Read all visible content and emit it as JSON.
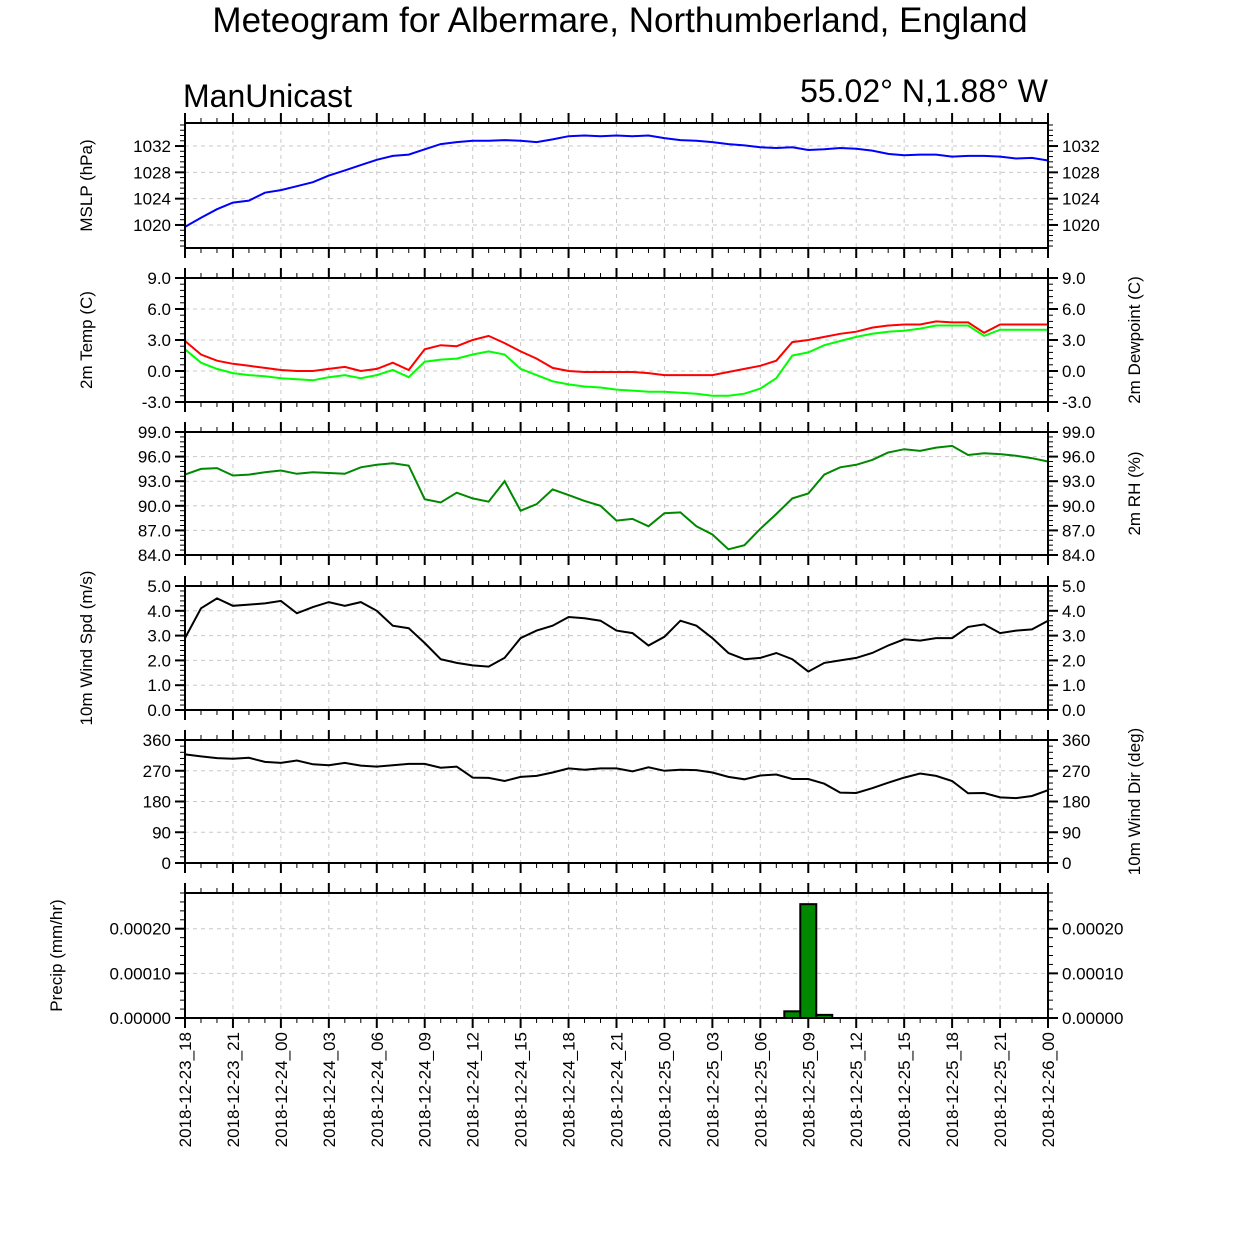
{
  "title": "Meteogram for Albermare, Northumberland, England",
  "source_label": "ManUnicast",
  "location_label": "55.02° N,1.88° W",
  "x_tick_labels": [
    "2018-12-23_18",
    "2018-12-23_21",
    "2018-12-24_00",
    "2018-12-24_03",
    "2018-12-24_06",
    "2018-12-24_09",
    "2018-12-24_12",
    "2018-12-24_15",
    "2018-12-24_18",
    "2018-12-24_21",
    "2018-12-25_00",
    "2018-12-25_03",
    "2018-12-25_06",
    "2018-12-25_09",
    "2018-12-25_12",
    "2018-12-25_15",
    "2018-12-25_18",
    "2018-12-25_21",
    "2018-12-26_00"
  ],
  "chart_data": [
    {
      "type": "line",
      "id": "mslp",
      "ylabel": "MSLP (hPa)",
      "ylabel_right": "",
      "x_range_hours": [
        0,
        54
      ],
      "ylim": [
        1016.5,
        1035.5
      ],
      "yticks": [
        1020,
        1024,
        1028,
        1032
      ],
      "ytick_labels": [
        "1020",
        "1024",
        "1028",
        "1032"
      ],
      "grid": true,
      "series": [
        {
          "color": "#0000ff",
          "x": [
            0,
            1,
            2,
            3,
            4,
            5,
            6,
            7,
            8,
            9,
            10,
            11,
            12,
            13,
            14,
            15,
            16,
            17,
            18,
            19,
            20,
            21,
            22,
            23,
            24,
            25,
            26,
            27,
            28,
            29,
            30,
            31,
            32,
            33,
            34,
            35,
            36,
            37,
            38,
            39,
            40,
            41,
            42,
            43,
            44,
            45,
            46,
            47,
            48,
            49,
            50,
            51,
            52,
            53,
            54
          ],
          "values": [
            1019.7,
            1021.1,
            1022.4,
            1023.4,
            1023.7,
            1024.9,
            1025.3,
            1025.9,
            1026.5,
            1027.5,
            1028.3,
            1029.1,
            1029.9,
            1030.5,
            1030.7,
            1031.5,
            1032.3,
            1032.6,
            1032.8,
            1032.8,
            1032.9,
            1032.8,
            1032.6,
            1033.0,
            1033.5,
            1033.6,
            1033.5,
            1033.6,
            1033.5,
            1033.6,
            1033.2,
            1032.9,
            1032.8,
            1032.6,
            1032.3,
            1032.1,
            1031.8,
            1031.7,
            1031.8,
            1031.4,
            1031.5,
            1031.7,
            1031.6,
            1031.3,
            1030.8,
            1030.6,
            1030.7,
            1030.7,
            1030.4,
            1030.5,
            1030.5,
            1030.4,
            1030.1,
            1030.2,
            1029.8
          ]
        }
      ]
    },
    {
      "type": "line",
      "id": "temp",
      "ylabel": "2m Temp (C)",
      "ylabel_right": "2m Dewpoint (C)",
      "x_range_hours": [
        0,
        54
      ],
      "ylim": [
        -3,
        9
      ],
      "yticks": [
        -3,
        0,
        3,
        6,
        9
      ],
      "ytick_labels": [
        "-3.0",
        "0.0",
        "3.0",
        "6.0",
        "9.0"
      ],
      "grid": true,
      "series": [
        {
          "color": "#ff0000",
          "x": [
            0,
            1,
            2,
            3,
            4,
            5,
            6,
            7,
            8,
            9,
            10,
            11,
            12,
            13,
            14,
            15,
            16,
            17,
            18,
            19,
            20,
            21,
            22,
            23,
            24,
            25,
            26,
            27,
            28,
            29,
            30,
            31,
            32,
            33,
            34,
            35,
            36,
            37,
            38,
            39,
            40,
            41,
            42,
            43,
            44,
            45,
            46,
            47,
            48,
            49,
            50,
            51,
            52,
            53,
            54
          ],
          "values": [
            2.9,
            1.6,
            1.0,
            0.7,
            0.5,
            0.3,
            0.1,
            0.0,
            0.0,
            0.2,
            0.4,
            0.0,
            0.2,
            0.8,
            0.1,
            2.1,
            2.5,
            2.4,
            3.0,
            3.4,
            2.7,
            1.9,
            1.2,
            0.3,
            0.0,
            -0.1,
            -0.1,
            -0.1,
            -0.1,
            -0.2,
            -0.4,
            -0.4,
            -0.4,
            -0.4,
            -0.1,
            0.2,
            0.5,
            1.0,
            2.8,
            3.0,
            3.3,
            3.6,
            3.8,
            4.2,
            4.4,
            4.5,
            4.5,
            4.8,
            4.7,
            4.7,
            3.7,
            4.5,
            4.5,
            4.5,
            4.5
          ]
        },
        {
          "color": "#00ff00",
          "x": [
            0,
            1,
            2,
            3,
            4,
            5,
            6,
            7,
            8,
            9,
            10,
            11,
            12,
            13,
            14,
            15,
            16,
            17,
            18,
            19,
            20,
            21,
            22,
            23,
            24,
            25,
            26,
            27,
            28,
            29,
            30,
            31,
            32,
            33,
            34,
            35,
            36,
            37,
            38,
            39,
            40,
            41,
            42,
            43,
            44,
            45,
            46,
            47,
            48,
            49,
            50,
            51,
            52,
            53,
            54
          ],
          "values": [
            2.1,
            0.8,
            0.2,
            -0.2,
            -0.4,
            -0.5,
            -0.7,
            -0.8,
            -0.9,
            -0.6,
            -0.4,
            -0.7,
            -0.4,
            0.1,
            -0.6,
            0.9,
            1.1,
            1.2,
            1.6,
            1.9,
            1.6,
            0.2,
            -0.4,
            -1.0,
            -1.3,
            -1.5,
            -1.6,
            -1.8,
            -1.9,
            -2.0,
            -2.0,
            -2.1,
            -2.2,
            -2.4,
            -2.4,
            -2.2,
            -1.7,
            -0.7,
            1.5,
            1.8,
            2.5,
            2.9,
            3.3,
            3.6,
            3.8,
            3.9,
            4.1,
            4.4,
            4.4,
            4.4,
            3.4,
            4.0,
            4.0,
            4.0,
            4.0
          ]
        }
      ]
    },
    {
      "type": "line",
      "id": "rh",
      "ylabel": "",
      "ylabel_right": "2m RH (%)",
      "x_range_hours": [
        0,
        54
      ],
      "ylim": [
        84,
        99
      ],
      "yticks": [
        84,
        87,
        90,
        93,
        96,
        99
      ],
      "ytick_labels": [
        "84.0",
        "87.0",
        "90.0",
        "93.0",
        "96.0",
        "99.0"
      ],
      "grid": true,
      "series": [
        {
          "color": "#008800",
          "x": [
            0,
            1,
            2,
            3,
            4,
            5,
            6,
            7,
            8,
            9,
            10,
            11,
            12,
            13,
            14,
            15,
            16,
            17,
            18,
            19,
            20,
            21,
            22,
            23,
            24,
            25,
            26,
            27,
            28,
            29,
            30,
            31,
            32,
            33,
            34,
            35,
            36,
            37,
            38,
            39,
            40,
            41,
            42,
            43,
            44,
            45,
            46,
            47,
            48,
            49,
            50,
            51,
            52,
            53,
            54
          ],
          "values": [
            93.8,
            94.5,
            94.6,
            93.7,
            93.8,
            94.1,
            94.3,
            93.9,
            94.1,
            94.0,
            93.9,
            94.7,
            95.0,
            95.2,
            94.9,
            90.8,
            90.4,
            91.6,
            90.9,
            90.5,
            93.0,
            89.4,
            90.2,
            92.0,
            91.3,
            90.6,
            90.0,
            88.2,
            88.4,
            87.5,
            89.1,
            89.2,
            87.5,
            86.5,
            84.7,
            85.2,
            87.2,
            89.0,
            90.9,
            91.5,
            93.8,
            94.7,
            95.0,
            95.6,
            96.5,
            96.9,
            96.7,
            97.1,
            97.3,
            96.2,
            96.4,
            96.3,
            96.1,
            95.8,
            95.4
          ]
        }
      ]
    },
    {
      "type": "line",
      "id": "wspd",
      "ylabel": "10m Wind Spd (m/s)",
      "ylabel_right": "",
      "x_range_hours": [
        0,
        54
      ],
      "ylim": [
        0,
        5
      ],
      "yticks": [
        0,
        1,
        2,
        3,
        4,
        5
      ],
      "ytick_labels": [
        "0.0",
        "1.0",
        "2.0",
        "3.0",
        "4.0",
        "5.0"
      ],
      "grid": true,
      "series": [
        {
          "color": "#000000",
          "x": [
            0,
            1,
            2,
            3,
            4,
            5,
            6,
            7,
            8,
            9,
            10,
            11,
            12,
            13,
            14,
            15,
            16,
            17,
            18,
            19,
            20,
            21,
            22,
            23,
            24,
            25,
            26,
            27,
            28,
            29,
            30,
            31,
            32,
            33,
            34,
            35,
            36,
            37,
            38,
            39,
            40,
            41,
            42,
            43,
            44,
            45,
            46,
            47,
            48,
            49,
            50,
            51,
            52,
            53,
            54
          ],
          "values": [
            2.9,
            4.1,
            4.5,
            4.2,
            4.25,
            4.3,
            4.4,
            3.9,
            4.15,
            4.35,
            4.2,
            4.35,
            4.0,
            3.4,
            3.3,
            2.7,
            2.05,
            1.9,
            1.8,
            1.75,
            2.1,
            2.9,
            3.2,
            3.4,
            3.75,
            3.7,
            3.6,
            3.2,
            3.1,
            2.6,
            2.95,
            3.6,
            3.4,
            2.9,
            2.3,
            2.05,
            2.1,
            2.3,
            2.05,
            1.55,
            1.9,
            2.0,
            2.1,
            2.3,
            2.6,
            2.85,
            2.8,
            2.9,
            2.9,
            3.35,
            3.45,
            3.1,
            3.2,
            3.25,
            3.6
          ]
        }
      ]
    },
    {
      "type": "line",
      "id": "wdir",
      "ylabel": "",
      "ylabel_right": "10m Wind Dir (deg)",
      "x_range_hours": [
        0,
        54
      ],
      "ylim": [
        0,
        360
      ],
      "yticks": [
        0,
        90,
        180,
        270,
        360
      ],
      "ytick_labels": [
        "0",
        "90",
        "180",
        "270",
        "360"
      ],
      "grid": true,
      "series": [
        {
          "color": "#000000",
          "x": [
            0,
            1,
            2,
            3,
            4,
            5,
            6,
            7,
            8,
            9,
            10,
            11,
            12,
            13,
            14,
            15,
            16,
            17,
            18,
            19,
            20,
            21,
            22,
            23,
            24,
            25,
            26,
            27,
            28,
            29,
            30,
            31,
            32,
            33,
            34,
            35,
            36,
            37,
            38,
            39,
            40,
            41,
            42,
            43,
            44,
            45,
            46,
            47,
            48,
            49,
            50,
            51,
            52,
            53,
            54
          ],
          "values": [
            318,
            312,
            307,
            305,
            308,
            296,
            293,
            300,
            289,
            286,
            293,
            285,
            282,
            286,
            290,
            290,
            279,
            282,
            250,
            249,
            240,
            252,
            255,
            265,
            277,
            273,
            277,
            277,
            268,
            280,
            270,
            273,
            272,
            265,
            252,
            245,
            256,
            259,
            246,
            246,
            232,
            206,
            205,
            219,
            235,
            250,
            262,
            255,
            240,
            204,
            205,
            192,
            190,
            196,
            213
          ]
        }
      ]
    },
    {
      "type": "bar",
      "id": "precip",
      "ylabel": "Precip (mm/hr)",
      "ylabel_right": "",
      "x_range_hours": [
        0,
        54
      ],
      "ylim": [
        0,
        0.00028
      ],
      "yticks": [
        0,
        0.0001,
        0.0002
      ],
      "ytick_labels": [
        "0.00000",
        "0.00010",
        "0.00020"
      ],
      "grid": true,
      "bar_color": "#008800",
      "x": [
        38,
        39,
        40
      ],
      "values": [
        1.5e-05,
        0.000255,
        7e-06
      ]
    }
  ]
}
